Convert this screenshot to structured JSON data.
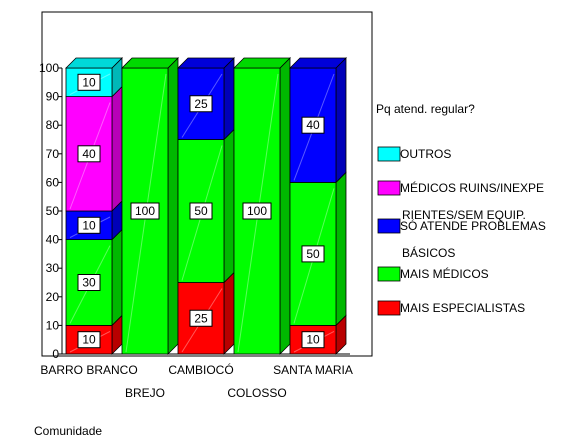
{
  "chart_data": {
    "type": "bar",
    "stacked": true,
    "three_d": true,
    "categories": [
      "BARRO BRANCO",
      "BREJO",
      "CAMBIOCÓ",
      "COLOSSO",
      "SANTA MARIA"
    ],
    "series": [
      {
        "name": "MAIS ESPECIALISTAS",
        "color": "#ff0000",
        "values": [
          10,
          0,
          25,
          0,
          10
        ]
      },
      {
        "name": "MAIS MÉDICOS",
        "color": "#00ff00",
        "values": [
          30,
          100,
          50,
          100,
          50
        ]
      },
      {
        "name": "SÓ ATENDE PROBLEMAS BÁSICOS",
        "color": "#0000ff",
        "values": [
          10,
          0,
          25,
          0,
          40
        ]
      },
      {
        "name": "MÉDICOS RUINS/INEXPERIENTES/SEM EQUIP.",
        "color": "#ff00ff",
        "values": [
          40,
          0,
          0,
          0,
          0
        ]
      },
      {
        "name": "OUTROS",
        "color": "#00ffff",
        "values": [
          10,
          0,
          0,
          0,
          0
        ]
      }
    ],
    "legend_title": "Pq atend. regular?",
    "legend_lines": [
      [
        "OUTROS"
      ],
      [
        "MÉDICOS RUINS/INEXPE",
        "RIENTES/SEM EQUIP."
      ],
      [
        "SÓ ATENDE PROBLEMAS",
        "BÁSICOS"
      ],
      [
        "MAIS MÉDICOS"
      ],
      [
        "MAIS ESPECIALISTAS"
      ]
    ],
    "legend_order": [
      4,
      3,
      2,
      1,
      0
    ],
    "legend_position": "right",
    "yticks": [
      "0",
      "10",
      "20",
      "30",
      "40",
      "50",
      "60",
      "70",
      "80",
      "90",
      "100"
    ],
    "ylim": [
      0,
      100
    ],
    "xlabel": "Comunidade",
    "ylabel": "",
    "grid": false
  }
}
